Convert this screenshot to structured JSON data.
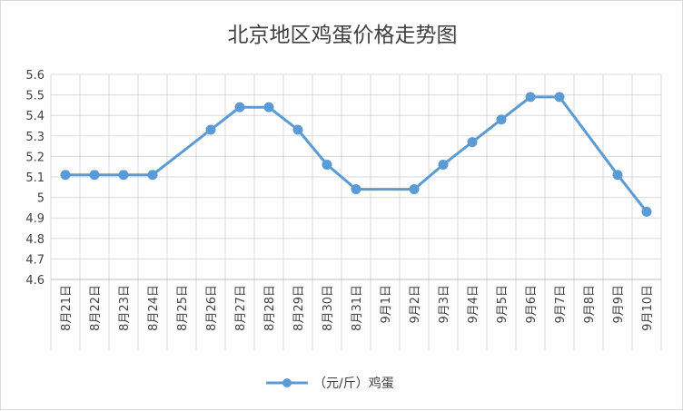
{
  "chart_data": {
    "type": "line",
    "title": "北京地区鸡蛋价格走势图",
    "categories": [
      "8月21日",
      "8月22日",
      "8月23日",
      "8月24日",
      "8月25日",
      "8月26日",
      "8月27日",
      "8月28日",
      "8月29日",
      "8月30日",
      "8月31日",
      "9月1日",
      "9月2日",
      "9月3日",
      "9月4日",
      "9月5日",
      "9月6日",
      "9月7日",
      "9月8日",
      "9月9日",
      "9月10日"
    ],
    "series": [
      {
        "name": "（元/斤）鸡蛋",
        "color": "#5b9bd5",
        "values": [
          5.11,
          5.11,
          5.11,
          5.11,
          null,
          5.33,
          5.44,
          5.44,
          5.33,
          5.16,
          5.04,
          null,
          5.04,
          5.16,
          5.27,
          5.38,
          5.49,
          5.49,
          null,
          5.11,
          4.93
        ]
      }
    ],
    "yticks": [
      "4.6",
      "4.7",
      "4.8",
      "4.9",
      "5",
      "5.1",
      "5.2",
      "5.3",
      "5.4",
      "5.5",
      "5.6"
    ],
    "ylim": [
      4.6,
      5.6
    ],
    "grid": true,
    "legend": "bottom",
    "connect_gaps": true
  }
}
